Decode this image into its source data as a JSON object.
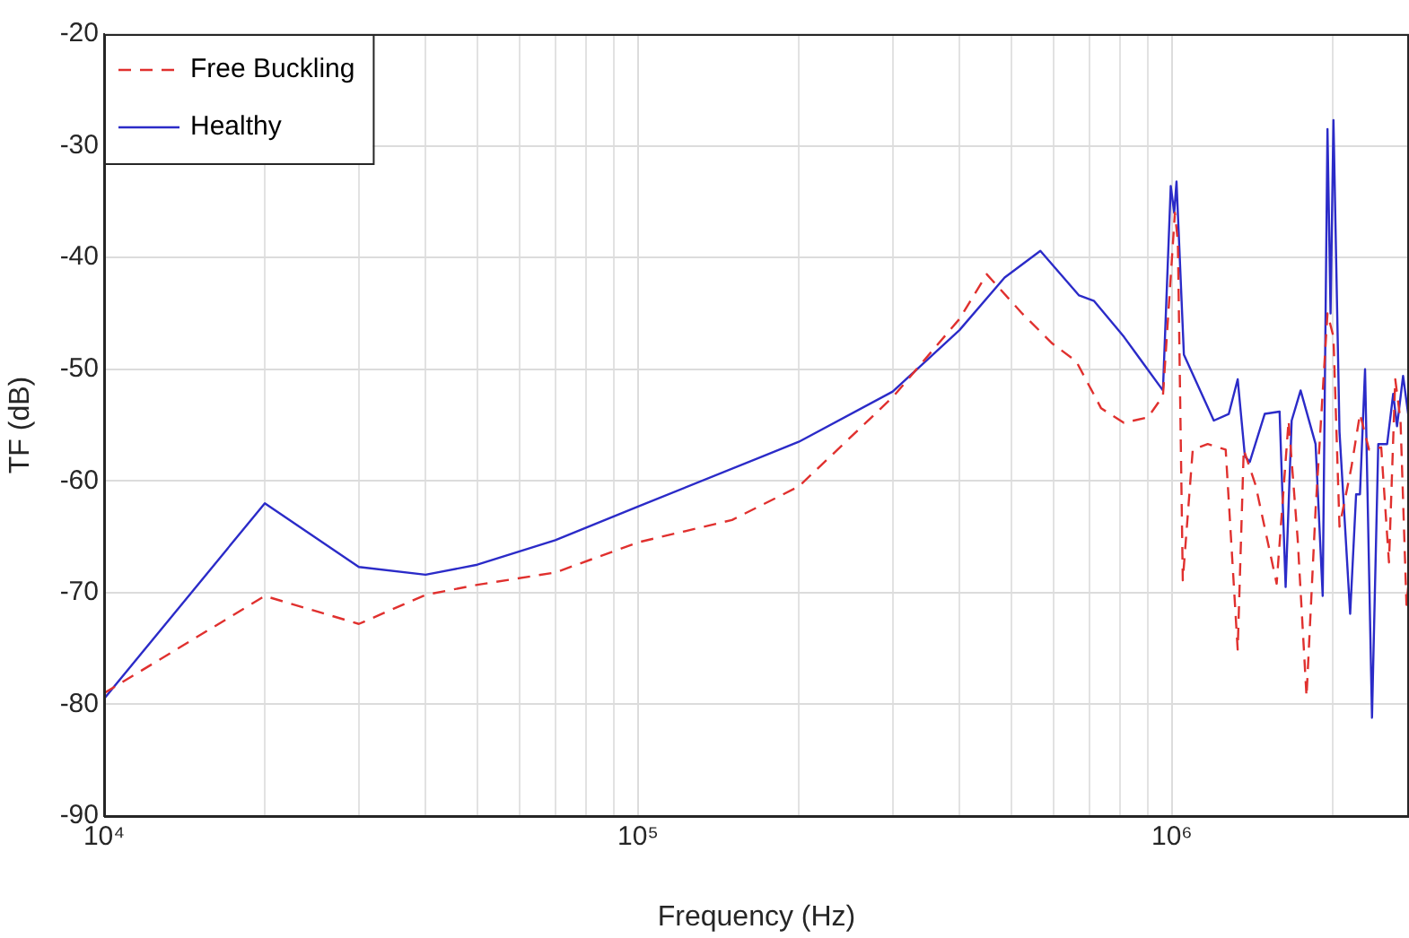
{
  "chart_data": {
    "type": "line",
    "xlabel": "Frequency (Hz)",
    "ylabel": "TF (dB)",
    "log": "x",
    "grid": true,
    "legend": "top left",
    "xlim": [
      10000,
      2780000
    ],
    "ylim": [
      -90,
      -20
    ],
    "yticks": [
      -90,
      -80,
      -70,
      -60,
      -50,
      -40,
      -30,
      -20
    ],
    "xticks": [
      {
        "value": 10000,
        "label": "10⁴"
      },
      {
        "value": 20000,
        "label": null
      },
      {
        "value": 30000,
        "label": null
      },
      {
        "value": 40000,
        "label": null
      },
      {
        "value": 50000,
        "label": null
      },
      {
        "value": 60000,
        "label": null
      },
      {
        "value": 70000,
        "label": null
      },
      {
        "value": 80000,
        "label": null
      },
      {
        "value": 90000,
        "label": null
      },
      {
        "value": 100000,
        "label": "10⁵"
      },
      {
        "value": 200000,
        "label": null
      },
      {
        "value": 300000,
        "label": null
      },
      {
        "value": 400000,
        "label": null
      },
      {
        "value": 500000,
        "label": null
      },
      {
        "value": 600000,
        "label": null
      },
      {
        "value": 700000,
        "label": null
      },
      {
        "value": 800000,
        "label": null
      },
      {
        "value": 900000,
        "label": null
      },
      {
        "value": 1000000,
        "label": "10⁶"
      },
      {
        "value": 2000000,
        "label": null
      }
    ],
    "series": [
      {
        "name": "Free Buckling",
        "color": "#e0302e",
        "line_style": "dashed",
        "x": [
          10000,
          20000,
          30000,
          40000,
          50000,
          70000,
          100000,
          150000,
          200000,
          300000,
          400000,
          450000,
          524000,
          597000,
          662000,
          737000,
          813000,
          902000,
          962000,
          1013000,
          1026000,
          1048000,
          1094000,
          1167000,
          1261000,
          1328000,
          1363000,
          1435000,
          1571000,
          1654000,
          1720000,
          1787000,
          1858000,
          1956000,
          2007000,
          2060000,
          2168000,
          2250000,
          2340000,
          2466000,
          2550000,
          2620000,
          2680000,
          2750000,
          2770000
        ],
        "values": [
          -79,
          -70.3,
          -72.8,
          -70.2,
          -69.3,
          -68.2,
          -65.5,
          -63.5,
          -60.5,
          -52.5,
          -45.5,
          -41.5,
          -45,
          -47.7,
          -49.3,
          -53.5,
          -54.8,
          -54.3,
          -52.4,
          -36,
          -38.6,
          -68.9,
          -57.2,
          -56.7,
          -57.2,
          -75.1,
          -57.2,
          -60.4,
          -69.2,
          -54.6,
          -65.2,
          -79.3,
          -62.6,
          -45,
          -47.1,
          -64.1,
          -58.8,
          -54,
          -57.2,
          -57,
          -67.3,
          -50.9,
          -54.6,
          -71.1,
          -69.5
        ]
      },
      {
        "name": "Healthy",
        "color": "#2b2bc8",
        "line_style": "solid",
        "x": [
          10000,
          20000,
          30000,
          40000,
          50000,
          70000,
          100000,
          200000,
          300000,
          400000,
          486000,
          567000,
          670000,
          715000,
          813000,
          962000,
          995000,
          1010000,
          1020000,
          1053000,
          1198000,
          1278000,
          1328000,
          1370000,
          1399000,
          1492000,
          1591000,
          1633000,
          1676000,
          1742000,
          1858000,
          1916000,
          1956000,
          1982000,
          2007000,
          2060000,
          2157000,
          2213000,
          2250000,
          2300000,
          2370000,
          2435000,
          2530000,
          2597000,
          2640000,
          2710000,
          2770000
        ],
        "values": [
          -79.5,
          -62,
          -67.7,
          -68.4,
          -67.5,
          -65.3,
          -62.3,
          -56.5,
          -52,
          -46.5,
          -41.8,
          -39.4,
          -43.4,
          -43.9,
          -47.1,
          -51.9,
          -33.6,
          -36,
          -33.2,
          -48.7,
          -54.6,
          -54,
          -50.9,
          -57.8,
          -58.3,
          -54,
          -53.8,
          -69.5,
          -54.6,
          -51.9,
          -56.7,
          -70.3,
          -28.5,
          -45,
          -27.7,
          -55.6,
          -71.9,
          -61.2,
          -61.2,
          -50,
          -81.2,
          -56.7,
          -56.7,
          -52.2,
          -55.1,
          -50.6,
          -54
        ]
      }
    ]
  }
}
